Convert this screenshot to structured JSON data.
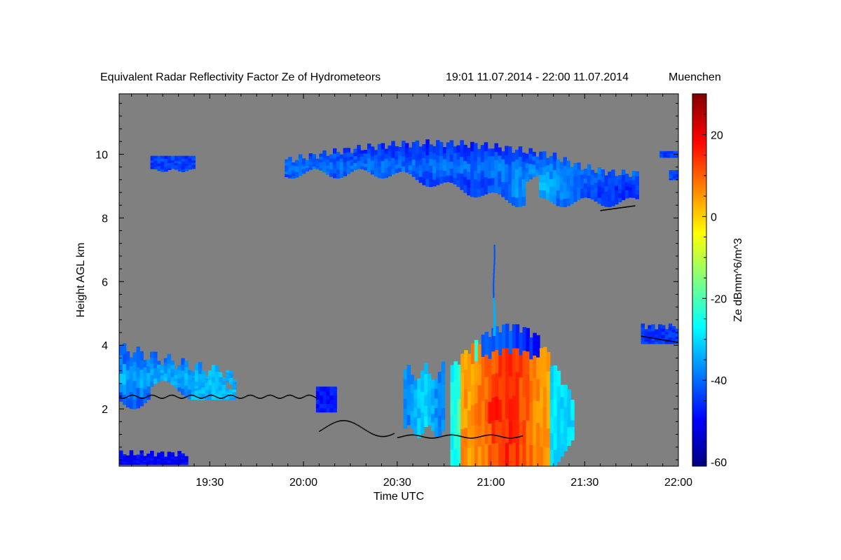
{
  "chart_data": {
    "type": "heatmap",
    "title": "Equivalent Radar Reflectivity Factor Ze of Hydrometeors",
    "time_range": "19:01 11.07.2014 - 22:00 11.07.2014",
    "location": "Muenchen",
    "xlabel": "Time UTC",
    "ylabel": "Height AGL km",
    "colorbar_label": "Ze dBmm^6/m^3",
    "x_ticks": [
      "19:30",
      "20:00",
      "20:30",
      "21:00",
      "21:30",
      "22:00"
    ],
    "y_ticks": [
      "2",
      "4",
      "6",
      "8",
      "10"
    ],
    "colorbar_ticks": [
      "20",
      "0",
      "-20",
      "-40",
      "-60"
    ],
    "xlim": [
      "19:01",
      "22:00"
    ],
    "ylim": [
      0.2,
      11.9
    ],
    "zlim": [
      -61,
      30
    ],
    "colormap": "jet",
    "background_color": "#808080",
    "features": [
      {
        "kind": "upper cloud layer",
        "time": [
          "19:54",
          "21:47"
        ],
        "height_km": [
          8.2,
          10.5
        ],
        "ze_dbz": [
          -45,
          -28
        ]
      },
      {
        "kind": "convective cell",
        "time": [
          "20:47",
          "21:26"
        ],
        "height_km": [
          0.2,
          4.7
        ],
        "ze_dbz": [
          -40,
          25
        ]
      },
      {
        "kind": "cell top",
        "time": "21:01",
        "height_km": 7.1
      },
      {
        "kind": "low cloud layer",
        "time": [
          "19:01",
          "20:30"
        ],
        "height_km": [
          1.4,
          4.0
        ],
        "ze_dbz": [
          -50,
          -30
        ]
      }
    ]
  }
}
